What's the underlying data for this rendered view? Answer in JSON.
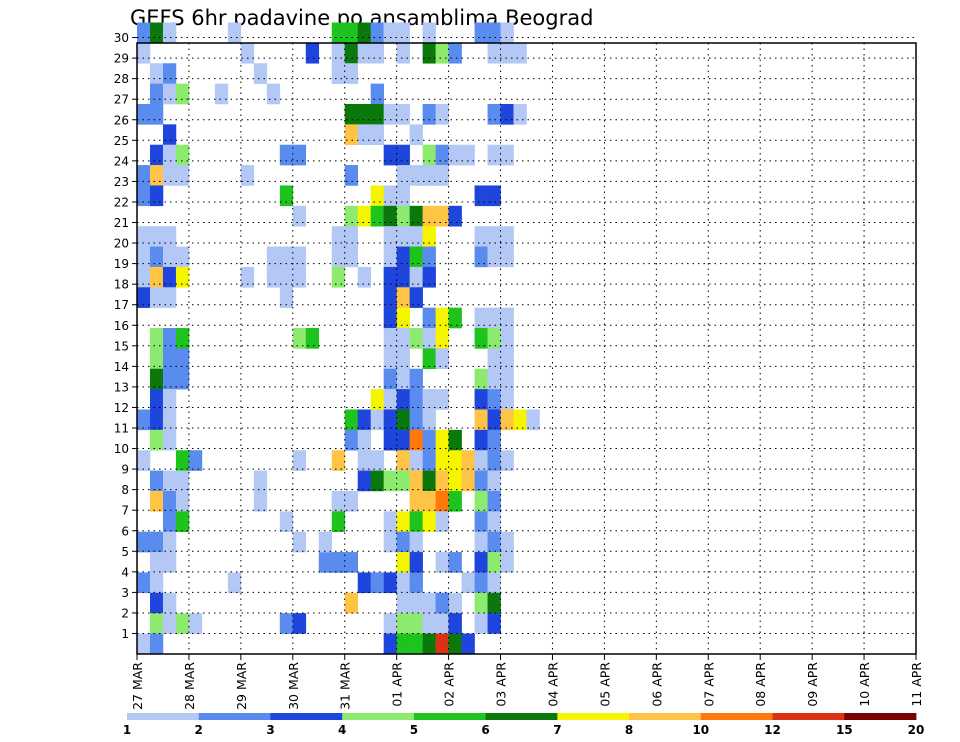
{
  "chart_data": {
    "type": "heatmap",
    "title": "GEFS 6hr padavine po ansamblima Beograd",
    "xlabel": "",
    "ylabel": "",
    "x_ticks": [
      "27 MAR",
      "28 MAR",
      "29 MAR",
      "30 MAR",
      "31 MAR",
      "01 APR",
      "02 APR",
      "03 APR",
      "04 APR",
      "05 APR",
      "06 APR",
      "07 APR",
      "08 APR",
      "09 APR",
      "10 APR",
      "11 APR"
    ],
    "y_ticks": [
      "1",
      "2",
      "3",
      "4",
      "5",
      "6",
      "7",
      "8",
      "9",
      "10",
      "11",
      "12",
      "13",
      "14",
      "15",
      "16",
      "17",
      "18",
      "19",
      "20",
      "21",
      "22",
      "23",
      "24",
      "25",
      "26",
      "27",
      "28",
      "29",
      "30"
    ],
    "x_range": [
      "27 MAR",
      "11 APR"
    ],
    "y_range": [
      0,
      30
    ],
    "grid": true,
    "colorbar": {
      "labels": [
        "1",
        "2",
        "3",
        "4",
        "5",
        "6",
        "7",
        "8",
        "10",
        "12",
        "15",
        "20"
      ],
      "colors": [
        "#b4c8f5",
        "#5a8cf0",
        "#1e46dc",
        "#8ceb6e",
        "#1ec31e",
        "#0a780a",
        "#f5f500",
        "#ffc346",
        "#ff780a",
        "#dc3214",
        "#780000"
      ]
    },
    "cells": [
      [
        0,
        30,
        1
      ],
      [
        1,
        30,
        5
      ],
      [
        2,
        30,
        0
      ],
      [
        0,
        29,
        0
      ],
      [
        1,
        28,
        0
      ],
      [
        2,
        28,
        1
      ],
      [
        1,
        27,
        1
      ],
      [
        2,
        27,
        0
      ],
      [
        3,
        27,
        3
      ],
      [
        0,
        26,
        1
      ],
      [
        1,
        26,
        1
      ],
      [
        2,
        25,
        2
      ],
      [
        1,
        24,
        2
      ],
      [
        2,
        24,
        0
      ],
      [
        3,
        24,
        3
      ],
      [
        0,
        23,
        1
      ],
      [
        1,
        23,
        7
      ],
      [
        2,
        23,
        0
      ],
      [
        3,
        23,
        0
      ],
      [
        0,
        22,
        1
      ],
      [
        1,
        22,
        2
      ],
      [
        0,
        20,
        0
      ],
      [
        1,
        20,
        0
      ],
      [
        2,
        20,
        0
      ],
      [
        0,
        19,
        0
      ],
      [
        1,
        19,
        1
      ],
      [
        2,
        19,
        0
      ],
      [
        3,
        19,
        0
      ],
      [
        0,
        18,
        0
      ],
      [
        1,
        18,
        7
      ],
      [
        2,
        18,
        2
      ],
      [
        3,
        18,
        6
      ],
      [
        0,
        17,
        2
      ],
      [
        1,
        17,
        0
      ],
      [
        2,
        17,
        0
      ],
      [
        1,
        15,
        3
      ],
      [
        2,
        15,
        1
      ],
      [
        3,
        15,
        4
      ],
      [
        1,
        14,
        3
      ],
      [
        2,
        14,
        1
      ],
      [
        3,
        14,
        1
      ],
      [
        1,
        13,
        5
      ],
      [
        2,
        13,
        1
      ],
      [
        3,
        13,
        1
      ],
      [
        1,
        12,
        2
      ],
      [
        2,
        12,
        0
      ],
      [
        0,
        11,
        1
      ],
      [
        1,
        11,
        2
      ],
      [
        2,
        11,
        0
      ],
      [
        1,
        10,
        3
      ],
      [
        2,
        10,
        0
      ],
      [
        0,
        9,
        0
      ],
      [
        3,
        9,
        4
      ],
      [
        4,
        9,
        1
      ],
      [
        1,
        8,
        1
      ],
      [
        2,
        8,
        0
      ],
      [
        3,
        8,
        0
      ],
      [
        1,
        7,
        7
      ],
      [
        2,
        7,
        1
      ],
      [
        3,
        7,
        0
      ],
      [
        2,
        6,
        1
      ],
      [
        3,
        6,
        4
      ],
      [
        0,
        5,
        1
      ],
      [
        1,
        5,
        1
      ],
      [
        2,
        5,
        0
      ],
      [
        1,
        4,
        0
      ],
      [
        2,
        4,
        0
      ],
      [
        0,
        3,
        1
      ],
      [
        1,
        3,
        0
      ],
      [
        1,
        2,
        2
      ],
      [
        2,
        2,
        0
      ],
      [
        1,
        1,
        3
      ],
      [
        2,
        1,
        0
      ],
      [
        3,
        1,
        3
      ],
      [
        4,
        1,
        0
      ],
      [
        0,
        0,
        0
      ],
      [
        1,
        0,
        1
      ],
      [
        7,
        30,
        0
      ],
      [
        8,
        29,
        0
      ],
      [
        9,
        28,
        0
      ],
      [
        6,
        27,
        0
      ],
      [
        8,
        23,
        0
      ],
      [
        10,
        19,
        0
      ],
      [
        8,
        18,
        0
      ],
      [
        9,
        8,
        0
      ],
      [
        9,
        7,
        0
      ],
      [
        7,
        3,
        0
      ],
      [
        13,
        29,
        2
      ],
      [
        10,
        27,
        0
      ],
      [
        11,
        24,
        1
      ],
      [
        12,
        24,
        1
      ],
      [
        11,
        22,
        4
      ],
      [
        12,
        21,
        0
      ],
      [
        11,
        19,
        0
      ],
      [
        12,
        19,
        0
      ],
      [
        11,
        6,
        0
      ],
      [
        12,
        5,
        0
      ],
      [
        11,
        1,
        1
      ],
      [
        12,
        1,
        2
      ],
      [
        14,
        4,
        1
      ],
      [
        15,
        4,
        1
      ],
      [
        10,
        18,
        0
      ],
      [
        11,
        18,
        0
      ],
      [
        12,
        18,
        0
      ],
      [
        11,
        17,
        0
      ],
      [
        12,
        15,
        3
      ],
      [
        13,
        15,
        4
      ],
      [
        12,
        9,
        0
      ],
      [
        15,
        7,
        0
      ],
      [
        15,
        30,
        4
      ],
      [
        16,
        30,
        4
      ],
      [
        17,
        30,
        5
      ],
      [
        18,
        30,
        1
      ],
      [
        19,
        30,
        0
      ],
      [
        15,
        29,
        0
      ],
      [
        16,
        29,
        5
      ],
      [
        17,
        29,
        0
      ],
      [
        18,
        29,
        0
      ],
      [
        15,
        28,
        0
      ],
      [
        16,
        28,
        0
      ],
      [
        18,
        27,
        1
      ],
      [
        16,
        26,
        5
      ],
      [
        17,
        26,
        5
      ],
      [
        18,
        26,
        5
      ],
      [
        16,
        25,
        7
      ],
      [
        17,
        25,
        0
      ],
      [
        18,
        25,
        0
      ],
      [
        16,
        23,
        1
      ],
      [
        18,
        22,
        6
      ],
      [
        16,
        21,
        3
      ],
      [
        17,
        21,
        6
      ],
      [
        18,
        21,
        4
      ],
      [
        19,
        21,
        2
      ],
      [
        15,
        20,
        0
      ],
      [
        16,
        20,
        0
      ],
      [
        15,
        19,
        0
      ],
      [
        16,
        19,
        0
      ],
      [
        15,
        18,
        3
      ],
      [
        17,
        18,
        0
      ],
      [
        19,
        18,
        0
      ],
      [
        20,
        18,
        0
      ],
      [
        21,
        18,
        0
      ],
      [
        16,
        11,
        4
      ],
      [
        17,
        11,
        2
      ],
      [
        18,
        11,
        0
      ],
      [
        16,
        10,
        1
      ],
      [
        17,
        10,
        0
      ],
      [
        15,
        9,
        7
      ],
      [
        17,
        9,
        0
      ],
      [
        18,
        9,
        0
      ],
      [
        17,
        8,
        2
      ],
      [
        18,
        8,
        5
      ],
      [
        15,
        7,
        0
      ],
      [
        16,
        7,
        0
      ],
      [
        15,
        6,
        4
      ],
      [
        15,
        4,
        1
      ],
      [
        16,
        4,
        1
      ],
      [
        14,
        5,
        0
      ],
      [
        16,
        2,
        7
      ],
      [
        17,
        3,
        2
      ],
      [
        18,
        3,
        1
      ],
      [
        19,
        30,
        0
      ],
      [
        20,
        30,
        0
      ],
      [
        22,
        30,
        0
      ],
      [
        20,
        29,
        0
      ],
      [
        22,
        29,
        5
      ],
      [
        23,
        29,
        3
      ],
      [
        24,
        29,
        1
      ],
      [
        19,
        26,
        0
      ],
      [
        20,
        26,
        0
      ],
      [
        22,
        26,
        1
      ],
      [
        23,
        26,
        0
      ],
      [
        21,
        25,
        0
      ],
      [
        19,
        24,
        2
      ],
      [
        20,
        24,
        2
      ],
      [
        22,
        24,
        3
      ],
      [
        23,
        24,
        1
      ],
      [
        24,
        24,
        0
      ],
      [
        25,
        24,
        0
      ],
      [
        20,
        23,
        0
      ],
      [
        21,
        23,
        0
      ],
      [
        22,
        23,
        0
      ],
      [
        23,
        23,
        0
      ],
      [
        19,
        22,
        0
      ],
      [
        20,
        22,
        0
      ],
      [
        19,
        21,
        5
      ],
      [
        20,
        21,
        3
      ],
      [
        21,
        21,
        5
      ],
      [
        22,
        21,
        7
      ],
      [
        23,
        21,
        7
      ],
      [
        24,
        21,
        2
      ],
      [
        19,
        20,
        0
      ],
      [
        20,
        20,
        0
      ],
      [
        21,
        20,
        0
      ],
      [
        22,
        20,
        6
      ],
      [
        19,
        19,
        0
      ],
      [
        20,
        19,
        2
      ],
      [
        21,
        19,
        4
      ],
      [
        22,
        19,
        1
      ],
      [
        19,
        18,
        2
      ],
      [
        20,
        18,
        2
      ],
      [
        21,
        18,
        0
      ],
      [
        22,
        18,
        2
      ],
      [
        19,
        17,
        2
      ],
      [
        20,
        17,
        7
      ],
      [
        21,
        17,
        2
      ],
      [
        19,
        16,
        2
      ],
      [
        20,
        16,
        6
      ],
      [
        22,
        16,
        1
      ],
      [
        23,
        16,
        6
      ],
      [
        24,
        16,
        4
      ],
      [
        19,
        15,
        0
      ],
      [
        20,
        15,
        0
      ],
      [
        21,
        15,
        3
      ],
      [
        22,
        15,
        0
      ],
      [
        23,
        15,
        6
      ],
      [
        19,
        14,
        0
      ],
      [
        20,
        14,
        0
      ],
      [
        22,
        14,
        4
      ],
      [
        23,
        14,
        0
      ],
      [
        19,
        13,
        1
      ],
      [
        20,
        13,
        0
      ],
      [
        21,
        13,
        1
      ],
      [
        18,
        12,
        6
      ],
      [
        19,
        12,
        0
      ],
      [
        20,
        12,
        2
      ],
      [
        21,
        12,
        1
      ],
      [
        22,
        12,
        0
      ],
      [
        23,
        12,
        0
      ],
      [
        19,
        11,
        2
      ],
      [
        20,
        11,
        5
      ],
      [
        21,
        11,
        1
      ],
      [
        22,
        11,
        0
      ],
      [
        19,
        10,
        2
      ],
      [
        20,
        10,
        2
      ],
      [
        21,
        10,
        8
      ],
      [
        22,
        10,
        1
      ],
      [
        23,
        10,
        6
      ],
      [
        24,
        10,
        5
      ],
      [
        20,
        9,
        7
      ],
      [
        21,
        9,
        0
      ],
      [
        22,
        9,
        1
      ],
      [
        23,
        9,
        6
      ],
      [
        24,
        9,
        6
      ],
      [
        25,
        9,
        7
      ],
      [
        26,
        9,
        3
      ],
      [
        27,
        9,
        4
      ],
      [
        19,
        8,
        3
      ],
      [
        20,
        8,
        3
      ],
      [
        21,
        8,
        7
      ],
      [
        22,
        8,
        5
      ],
      [
        23,
        8,
        7
      ],
      [
        24,
        8,
        6
      ],
      [
        25,
        8,
        7
      ],
      [
        26,
        8,
        0
      ],
      [
        21,
        7,
        7
      ],
      [
        22,
        7,
        7
      ],
      [
        23,
        7,
        8
      ],
      [
        24,
        7,
        4
      ],
      [
        19,
        6,
        0
      ],
      [
        20,
        6,
        6
      ],
      [
        21,
        6,
        4
      ],
      [
        22,
        6,
        6
      ],
      [
        23,
        6,
        0
      ],
      [
        19,
        5,
        0
      ],
      [
        20,
        5,
        1
      ],
      [
        21,
        5,
        0
      ],
      [
        20,
        4,
        6
      ],
      [
        21,
        4,
        2
      ],
      [
        23,
        4,
        0
      ],
      [
        24,
        4,
        1
      ],
      [
        19,
        3,
        2
      ],
      [
        20,
        3,
        0
      ],
      [
        21,
        3,
        1
      ],
      [
        20,
        2,
        0
      ],
      [
        21,
        2,
        0
      ],
      [
        22,
        2,
        0
      ],
      [
        23,
        2,
        1
      ],
      [
        24,
        2,
        0
      ],
      [
        19,
        1,
        0
      ],
      [
        20,
        1,
        3
      ],
      [
        21,
        1,
        3
      ],
      [
        22,
        1,
        0
      ],
      [
        23,
        1,
        0
      ],
      [
        24,
        1,
        0
      ],
      [
        19,
        0,
        2
      ],
      [
        20,
        0,
        4
      ],
      [
        21,
        0,
        4
      ],
      [
        22,
        0,
        5
      ],
      [
        23,
        0,
        9
      ],
      [
        24,
        0,
        5
      ],
      [
        25,
        0,
        2
      ],
      [
        23,
        2,
        1
      ],
      [
        24,
        1,
        2
      ],
      [
        25,
        3,
        0
      ],
      [
        26,
        4,
        1
      ],
      [
        26,
        30,
        1
      ],
      [
        27,
        30,
        1
      ],
      [
        28,
        30,
        0
      ],
      [
        27,
        29,
        0
      ],
      [
        28,
        29,
        0
      ],
      [
        29,
        29,
        0
      ],
      [
        27,
        26,
        1
      ],
      [
        28,
        26,
        2
      ],
      [
        29,
        26,
        0
      ],
      [
        27,
        24,
        0
      ],
      [
        28,
        24,
        0
      ],
      [
        26,
        22,
        2
      ],
      [
        27,
        22,
        2
      ],
      [
        26,
        20,
        0
      ],
      [
        27,
        20,
        0
      ],
      [
        28,
        20,
        0
      ],
      [
        26,
        19,
        1
      ],
      [
        27,
        19,
        0
      ],
      [
        28,
        19,
        0
      ],
      [
        26,
        16,
        0
      ],
      [
        27,
        16,
        0
      ],
      [
        28,
        16,
        0
      ],
      [
        26,
        15,
        4
      ],
      [
        27,
        15,
        3
      ],
      [
        28,
        15,
        0
      ],
      [
        27,
        14,
        0
      ],
      [
        28,
        14,
        0
      ],
      [
        26,
        13,
        3
      ],
      [
        27,
        13,
        0
      ],
      [
        28,
        13,
        0
      ],
      [
        26,
        12,
        2
      ],
      [
        27,
        12,
        1
      ],
      [
        28,
        12,
        0
      ],
      [
        26,
        11,
        7
      ],
      [
        27,
        11,
        2
      ],
      [
        28,
        11,
        7
      ],
      [
        29,
        11,
        6
      ],
      [
        30,
        11,
        0
      ],
      [
        26,
        10,
        2
      ],
      [
        27,
        10,
        1
      ],
      [
        26,
        9,
        0
      ],
      [
        27,
        9,
        1
      ],
      [
        28,
        9,
        0
      ],
      [
        26,
        8,
        1
      ],
      [
        27,
        8,
        0
      ],
      [
        26,
        7,
        3
      ],
      [
        27,
        7,
        1
      ],
      [
        26,
        6,
        1
      ],
      [
        27,
        6,
        0
      ],
      [
        26,
        5,
        0
      ],
      [
        27,
        5,
        1
      ],
      [
        28,
        5,
        0
      ],
      [
        26,
        4,
        2
      ],
      [
        27,
        4,
        3
      ],
      [
        28,
        4,
        0
      ],
      [
        26,
        3,
        1
      ],
      [
        27,
        3,
        0
      ],
      [
        26,
        2,
        3
      ],
      [
        27,
        2,
        5
      ],
      [
        26,
        1,
        0
      ],
      [
        27,
        1,
        2
      ]
    ]
  }
}
